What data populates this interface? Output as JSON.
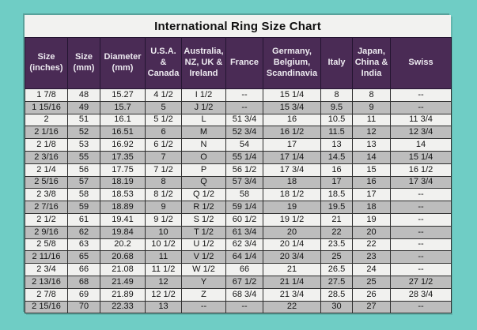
{
  "title": "International Ring Size Chart",
  "colors": {
    "background": "#6FCDC5",
    "title_bg": "#F2F2F0",
    "title_text": "#111111",
    "header_bg": "#4A2B55",
    "header_text": "#EDEAF0",
    "row_light": "#F1F1EF",
    "row_dark": "#BDBDBD",
    "cell_border": "#2E2E2E"
  },
  "chart_data": {
    "type": "table",
    "title": "International Ring Size Chart",
    "columns": [
      "Size (inches)",
      "Size (mm)",
      "Diameter (mm)",
      "U.S.A. & Canada",
      "Australia, NZ, UK & Ireland",
      "France",
      "Germany, Belgium, Scandinavia",
      "Italy",
      "Japan, China & India",
      "Swiss"
    ],
    "rows": [
      [
        "1 7/8",
        "48",
        "15.27",
        "4 1/2",
        "I 1/2",
        "--",
        "15 1/4",
        "8",
        "8",
        "--"
      ],
      [
        "1 15/16",
        "49",
        "15.7",
        "5",
        "J 1/2",
        "--",
        "15 3/4",
        "9.5",
        "9",
        "--"
      ],
      [
        "2",
        "51",
        "16.1",
        "5 1/2",
        "L",
        "51 3/4",
        "16",
        "10.5",
        "11",
        "11 3/4"
      ],
      [
        "2 1/16",
        "52",
        "16.51",
        "6",
        "M",
        "52 3/4",
        "16 1/2",
        "11.5",
        "12",
        "12 3/4"
      ],
      [
        "2 1/8",
        "53",
        "16.92",
        "6 1/2",
        "N",
        "54",
        "17",
        "13",
        "13",
        "14"
      ],
      [
        "2 3/16",
        "55",
        "17.35",
        "7",
        "O",
        "55 1/4",
        "17 1/4",
        "14.5",
        "14",
        "15 1/4"
      ],
      [
        "2 1/4",
        "56",
        "17.75",
        "7 1/2",
        "P",
        "56 1/2",
        "17 3/4",
        "16",
        "15",
        "16 1/2"
      ],
      [
        "2 5/16",
        "57",
        "18.19",
        "8",
        "Q",
        "57 3/4",
        "18",
        "17",
        "16",
        "17 3/4"
      ],
      [
        "2 3/8",
        "58",
        "18.53",
        "8 1/2",
        "Q 1/2",
        "58",
        "18 1/2",
        "18.5",
        "17",
        "--"
      ],
      [
        "2 7/16",
        "59",
        "18.89",
        "9",
        "R 1/2",
        "59 1/4",
        "19",
        "19.5",
        "18",
        "--"
      ],
      [
        "2 1/2",
        "61",
        "19.41",
        "9 1/2",
        "S 1/2",
        "60 1/2",
        "19 1/2",
        "21",
        "19",
        "--"
      ],
      [
        "2 9/16",
        "62",
        "19.84",
        "10",
        "T 1/2",
        "61 3/4",
        "20",
        "22",
        "20",
        "--"
      ],
      [
        "2 5/8",
        "63",
        "20.2",
        "10 1/2",
        "U 1/2",
        "62 3/4",
        "20 1/4",
        "23.5",
        "22",
        "--"
      ],
      [
        "2 11/16",
        "65",
        "20.68",
        "11",
        "V 1/2",
        "64 1/4",
        "20 3/4",
        "25",
        "23",
        "--"
      ],
      [
        "2 3/4",
        "66",
        "21.08",
        "11 1/2",
        "W 1/2",
        "66",
        "21",
        "26.5",
        "24",
        "--"
      ],
      [
        "2 13/16",
        "68",
        "21.49",
        "12",
        "Y",
        "67 1/2",
        "21 1/4",
        "27.5",
        "25",
        "27 1/2"
      ],
      [
        "2 7/8",
        "69",
        "21.89",
        "12 1/2",
        "Z",
        "68 3/4",
        "21 3/4",
        "28.5",
        "26",
        "28 3/4"
      ],
      [
        "2 15/16",
        "70",
        "22.33",
        "13",
        "--",
        "--",
        "22",
        "30",
        "27",
        "--"
      ]
    ]
  }
}
